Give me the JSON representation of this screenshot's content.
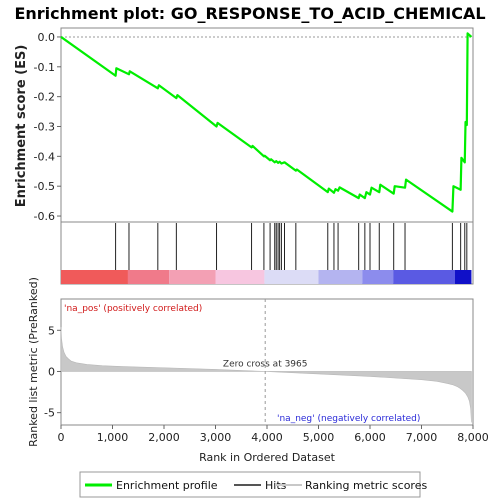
{
  "chart_data": {
    "type": "line",
    "title": "Enrichment plot: GO_RESPONSE_TO_ACID_CHEMICAL",
    "xlabel": "Rank in Ordered Dataset",
    "es_panel": {
      "ylabel": "Enrichment score (ES)",
      "ylim": [
        -0.62,
        0.03
      ],
      "yticks": [
        0.0,
        -0.1,
        -0.2,
        -0.3,
        -0.4,
        -0.5,
        -0.6
      ],
      "ytick_labels": [
        "0.0",
        "-0.1",
        "-0.2",
        "-0.3",
        "-0.4",
        "-0.5",
        "-0.6"
      ],
      "series": [
        {
          "name": "Enrichment profile",
          "color": "#00ee00",
          "x": [
            0,
            1060,
            1075,
            1320,
            1335,
            1880,
            1900,
            2240,
            2260,
            3020,
            3040,
            3700,
            3720,
            3940,
            3955,
            4060,
            4080,
            4150,
            4180,
            4215,
            4245,
            4280,
            4340,
            4560,
            4580,
            5180,
            5200,
            5300,
            5330,
            5380,
            5410,
            5780,
            5800,
            5900,
            5930,
            6000,
            6030,
            6180,
            6200,
            6460,
            6480,
            6680,
            6700,
            7600,
            7620,
            7760,
            7775,
            7840,
            7855,
            7880,
            7895,
            7970
          ],
          "y": [
            0.0,
            -0.13,
            -0.105,
            -0.125,
            -0.115,
            -0.172,
            -0.162,
            -0.205,
            -0.195,
            -0.3,
            -0.288,
            -0.37,
            -0.365,
            -0.4,
            -0.398,
            -0.413,
            -0.41,
            -0.42,
            -0.416,
            -0.422,
            -0.418,
            -0.424,
            -0.42,
            -0.448,
            -0.444,
            -0.52,
            -0.508,
            -0.522,
            -0.51,
            -0.515,
            -0.504,
            -0.54,
            -0.528,
            -0.54,
            -0.52,
            -0.528,
            -0.505,
            -0.52,
            -0.495,
            -0.525,
            -0.5,
            -0.505,
            -0.478,
            -0.585,
            -0.5,
            -0.512,
            -0.405,
            -0.42,
            -0.285,
            -0.295,
            0.012,
            0.0
          ]
        }
      ]
    },
    "hits_panel": {
      "legend_name": "Hits",
      "hit_ranks": [
        1060,
        1320,
        1880,
        2240,
        3020,
        3700,
        3940,
        4060,
        4150,
        4180,
        4215,
        4245,
        4280,
        4340,
        4560,
        5180,
        5300,
        5380,
        5780,
        5900,
        6000,
        6180,
        6460,
        6680,
        7600,
        7760,
        7840,
        7880
      ]
    },
    "color_bar": {
      "segments": [
        {
          "from": 0,
          "to": 1300,
          "color": "#f05a5a"
        },
        {
          "from": 1300,
          "to": 2100,
          "color": "#f07a8a"
        },
        {
          "from": 2100,
          "to": 3000,
          "color": "#f3a0b4"
        },
        {
          "from": 3000,
          "to": 3950,
          "color": "#f7c6e0"
        },
        {
          "from": 3950,
          "to": 5000,
          "color": "#dcdcf6"
        },
        {
          "from": 5000,
          "to": 5850,
          "color": "#b4b4f0"
        },
        {
          "from": 5850,
          "to": 6450,
          "color": "#8c8ced"
        },
        {
          "from": 6450,
          "to": 7650,
          "color": "#5a5ae3"
        },
        {
          "from": 7650,
          "to": 7970,
          "color": "#1010c8"
        }
      ]
    },
    "rank_panel": {
      "ylabel": "Ranked list metric (PreRanked)",
      "ylim": [
        -6.5,
        8.8
      ],
      "yticks": [
        5,
        0,
        -5
      ],
      "ytick_labels": [
        "5",
        "0",
        "-5"
      ],
      "pos_label": "'na_pos' (positively correlated)",
      "neg_label": "'na_neg' (negatively correlated)",
      "zero_cross_label": "Zero cross at 3965",
      "zero_cross": 3965,
      "legend_name": "Ranking metric scores",
      "profile_x": [
        0,
        10,
        30,
        60,
        100,
        150,
        200,
        300,
        500,
        800,
        1200,
        2000,
        3000,
        3965,
        5000,
        6000,
        7000,
        7300,
        7500,
        7600,
        7700,
        7750,
        7800,
        7850,
        7900,
        7930,
        7955,
        7970
      ],
      "profile_y": [
        5.4,
        4.0,
        3.0,
        2.3,
        1.8,
        1.5,
        1.25,
        1.05,
        0.85,
        0.7,
        0.6,
        0.45,
        0.25,
        0.0,
        -0.3,
        -0.6,
        -1.0,
        -1.2,
        -1.45,
        -1.6,
        -1.85,
        -2.05,
        -2.3,
        -2.6,
        -3.1,
        -3.6,
        -4.5,
        -6.2
      ]
    },
    "xaxis": {
      "xlim": [
        0,
        8000
      ],
      "xticks": [
        0,
        1000,
        2000,
        3000,
        4000,
        5000,
        6000,
        7000,
        8000
      ],
      "xtick_labels": [
        "0",
        "1,000",
        "2,000",
        "3,000",
        "4,000",
        "5,000",
        "6,000",
        "7,000",
        "8,000"
      ]
    },
    "legend": {
      "placement": "bottom",
      "entries": [
        {
          "name": "Enrichment profile",
          "color": "#00ee00"
        },
        {
          "name": "Hits",
          "color": "#555555"
        },
        {
          "name": "Ranking metric scores",
          "color": "#c8c8c8"
        }
      ]
    }
  }
}
